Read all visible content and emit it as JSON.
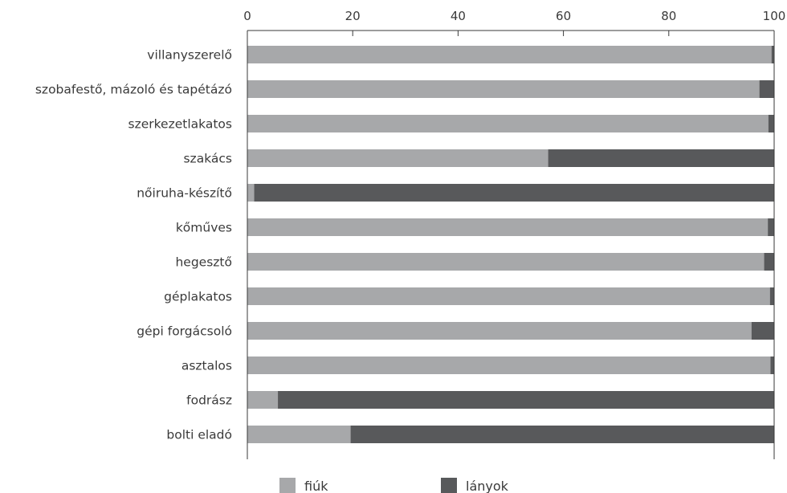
{
  "chart_data": {
    "type": "bar",
    "orientation": "horizontal",
    "stacked": true,
    "categories": [
      "villanyszerelő",
      "szobafestő, mázoló és tapétázó",
      "szerkezetlakatos",
      "szakács",
      "nőiruha-készítő",
      "kőműves",
      "hegesztő",
      "géplakatos",
      "gépi forgácsoló",
      "asztalos",
      "fodrász",
      "bolti eladó"
    ],
    "series": [
      {
        "name": "fiúk",
        "color": "#a7a8aa",
        "values": [
          99.5,
          97.2,
          98.9,
          57.1,
          1.3,
          98.8,
          98.1,
          99.2,
          95.7,
          99.3,
          5.8,
          19.6
        ]
      },
      {
        "name": "lányok",
        "color": "#58595b",
        "values": [
          0.5,
          2.8,
          1.1,
          42.9,
          98.7,
          1.2,
          1.9,
          0.8,
          4.3,
          0.7,
          94.2,
          80.4
        ]
      }
    ],
    "xlim": [
      0,
      100
    ],
    "xticks": [
      0,
      20,
      40,
      60,
      80,
      100
    ],
    "title": "",
    "xlabel": "",
    "ylabel": "",
    "axis_position": "top",
    "grid": false,
    "legend_position": "bottom"
  }
}
